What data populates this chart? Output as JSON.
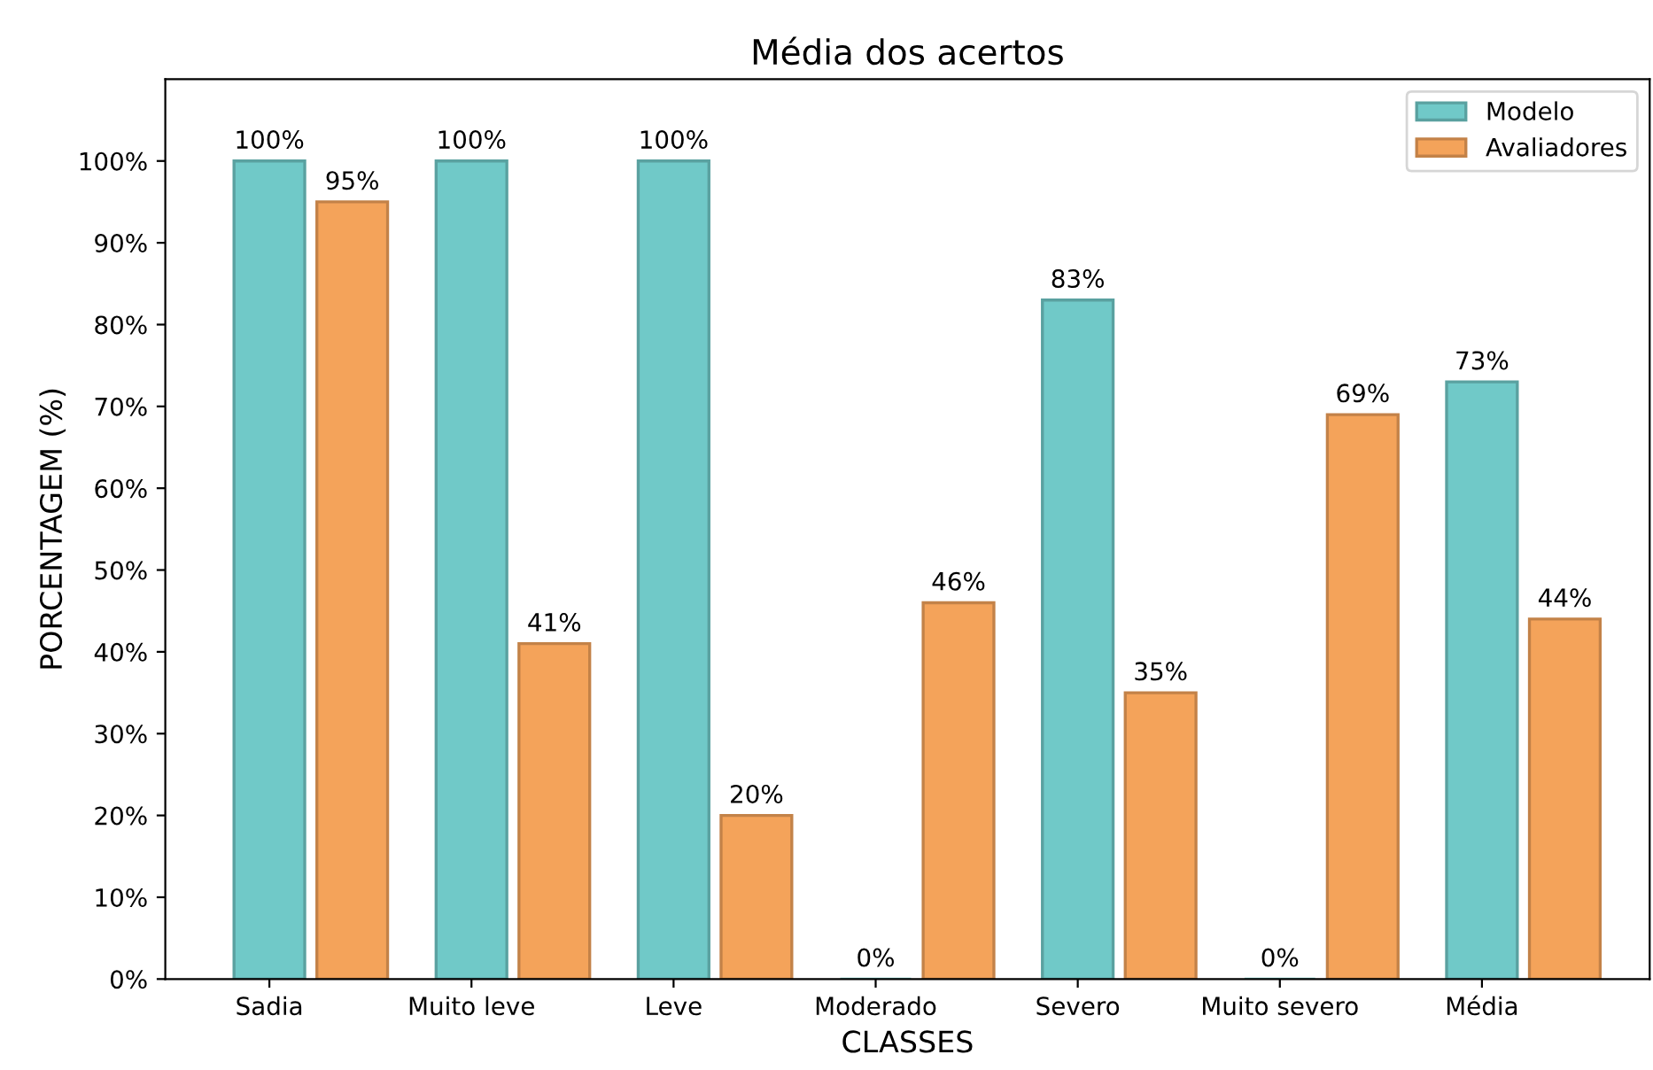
{
  "chart_data": {
    "type": "bar",
    "title": "Média dos acertos",
    "xlabel": "CLASSES",
    "ylabel": "PORCENTAGEM (%)",
    "categories": [
      "Sadia",
      "Muito leve",
      "Leve",
      "Moderado",
      "Severo",
      "Muito severo",
      "Média"
    ],
    "series": [
      {
        "name": "Modelo",
        "color": "#70c9c8",
        "values": [
          100,
          100,
          100,
          0,
          83,
          0,
          73
        ],
        "value_labels": [
          "100%",
          "100%",
          "100%",
          "0%",
          "83%",
          "0%",
          "73%"
        ]
      },
      {
        "name": "Avaliadores",
        "color": "#f4a35a",
        "values": [
          95,
          41,
          20,
          46,
          35,
          69,
          44
        ],
        "value_labels": [
          "95%",
          "41%",
          "20%",
          "46%",
          "35%",
          "69%",
          "44%"
        ]
      }
    ],
    "ylim": [
      0,
      110
    ],
    "yticks": [
      {
        "value": 0,
        "label": "0%"
      },
      {
        "value": 10,
        "label": "10%"
      },
      {
        "value": 20,
        "label": "20%"
      },
      {
        "value": 30,
        "label": "30%"
      },
      {
        "value": 40,
        "label": "40%"
      },
      {
        "value": 50,
        "label": "50%"
      },
      {
        "value": 60,
        "label": "60%"
      },
      {
        "value": 70,
        "label": "70%"
      },
      {
        "value": 80,
        "label": "80%"
      },
      {
        "value": 90,
        "label": "90%"
      },
      {
        "value": 100,
        "label": "100%"
      }
    ],
    "grid": false,
    "legend": "top right"
  }
}
